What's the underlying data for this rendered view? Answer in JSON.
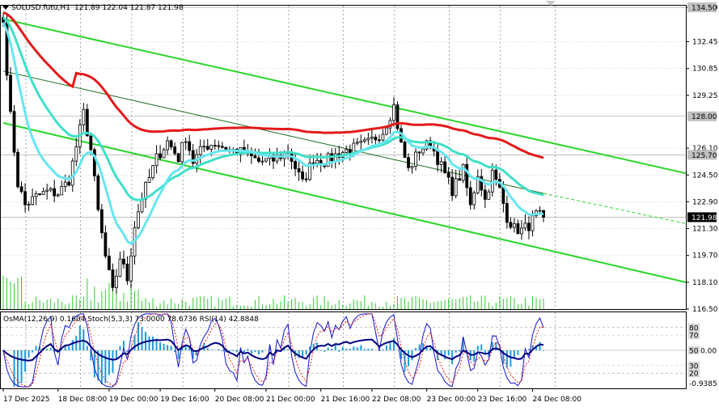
{
  "header": {
    "symbol_label": "SOLUSD.futu,H1",
    "ohlc": "121.89 122.04 121.87 121.98"
  },
  "indicator_label": "OsMA(12,26,9) 0.1604   Stoch(5,3,3) 73.0000 78.6736   RSI(14) 42.8848",
  "colors": {
    "background": "#ffffff",
    "candle": "#000000",
    "grid": "#000000",
    "ma_red": "#e31a1a",
    "ma_cyan": "#3fe0c8",
    "ma_light": "#66e6f0",
    "channel": "#2ad62a",
    "volume": "#33cc33",
    "osma": "#1e9bdc",
    "stoch_main": "#1414c8",
    "stoch_signal": "#e31a1a",
    "rsi": "#000080",
    "price_tag_bg": "#000000"
  },
  "chart_data": [
    {
      "type": "candlestick",
      "title": "SOLUSD.futu,H1",
      "x_ticks": [
        "17 Dec 2025",
        "18 Dec 08:00",
        "19 Dec 00:00",
        "19 Dec 16:00",
        "20 Dec 08:00",
        "21 Dec 00:00",
        "21 Dec 16:00",
        "22 Dec 08:00",
        "23 Dec 00:00",
        "23 Dec 16:00",
        "24 Dec 08:00"
      ],
      "y_ticks": [
        134.5,
        132.45,
        130.85,
        129.25,
        126.1,
        124.5,
        122.9,
        121.3,
        119.7,
        118.1,
        116.5
      ],
      "ylim": [
        116.5,
        134.6
      ],
      "price_tags": [
        {
          "label": "134.50",
          "value": 134.5
        },
        {
          "label": "128.00",
          "value": 128.0
        },
        {
          "label": "125.70",
          "value": 125.7
        },
        {
          "label": "121.98",
          "value": 121.98,
          "current": true
        }
      ],
      "ohlc_last": {
        "open": 121.89,
        "high": 122.04,
        "low": 121.87,
        "close": 121.98
      },
      "anchors": [
        {
          "i": 0,
          "p": 133.6
        },
        {
          "i": 2,
          "p": 128.0
        },
        {
          "i": 4,
          "p": 124.0
        },
        {
          "i": 6,
          "p": 122.7
        },
        {
          "i": 9,
          "p": 123.2
        },
        {
          "i": 12,
          "p": 123.5
        },
        {
          "i": 15,
          "p": 123.4
        },
        {
          "i": 18,
          "p": 124.2
        },
        {
          "i": 20,
          "p": 126.2
        },
        {
          "i": 22,
          "p": 128.2
        },
        {
          "i": 24,
          "p": 126.0
        },
        {
          "i": 26,
          "p": 122.3
        },
        {
          "i": 28,
          "p": 119.6
        },
        {
          "i": 30,
          "p": 117.5
        },
        {
          "i": 32,
          "p": 119.6
        },
        {
          "i": 34,
          "p": 118.3
        },
        {
          "i": 36,
          "p": 121.5
        },
        {
          "i": 38,
          "p": 123.2
        },
        {
          "i": 40,
          "p": 124.3
        },
        {
          "i": 42,
          "p": 125.5
        },
        {
          "i": 45,
          "p": 126.5
        },
        {
          "i": 48,
          "p": 125.5
        },
        {
          "i": 50,
          "p": 126.8
        },
        {
          "i": 52,
          "p": 125.3
        },
        {
          "i": 55,
          "p": 126.2
        },
        {
          "i": 58,
          "p": 126.4
        },
        {
          "i": 62,
          "p": 126.0
        },
        {
          "i": 66,
          "p": 125.8
        },
        {
          "i": 70,
          "p": 125.3
        },
        {
          "i": 74,
          "p": 125.4
        },
        {
          "i": 78,
          "p": 125.9
        },
        {
          "i": 82,
          "p": 124.0
        },
        {
          "i": 85,
          "p": 125.5
        },
        {
          "i": 88,
          "p": 125.3
        },
        {
          "i": 92,
          "p": 125.8
        },
        {
          "i": 96,
          "p": 126.1
        },
        {
          "i": 100,
          "p": 126.4
        },
        {
          "i": 104,
          "p": 127.1
        },
        {
          "i": 107,
          "p": 128.6
        },
        {
          "i": 109,
          "p": 126.3
        },
        {
          "i": 111,
          "p": 124.8
        },
        {
          "i": 114,
          "p": 126.0
        },
        {
          "i": 117,
          "p": 126.4
        },
        {
          "i": 120,
          "p": 125.0
        },
        {
          "i": 123,
          "p": 123.6
        },
        {
          "i": 126,
          "p": 124.8
        },
        {
          "i": 128,
          "p": 122.6
        },
        {
          "i": 130,
          "p": 124.6
        },
        {
          "i": 132,
          "p": 123.0
        },
        {
          "i": 134,
          "p": 124.6
        },
        {
          "i": 136,
          "p": 123.6
        },
        {
          "i": 138,
          "p": 122.0
        },
        {
          "i": 140,
          "p": 121.3
        },
        {
          "i": 142,
          "p": 121.2
        },
        {
          "i": 144,
          "p": 121.5
        },
        {
          "i": 146,
          "p": 122.1
        },
        {
          "i": 148,
          "p": 121.98
        }
      ]
    },
    {
      "type": "oscillator",
      "title": "OsMA(12,26,9) 0.1604   Stoch(5,3,3) 73.0000 78.6736   RSI(14) 42.8848",
      "y_ticks": [
        80,
        70,
        50,
        30,
        20
      ],
      "extra_label": "0.00",
      "extra_label_2": "-0.9385",
      "ylim": [
        0,
        100
      ]
    }
  ]
}
